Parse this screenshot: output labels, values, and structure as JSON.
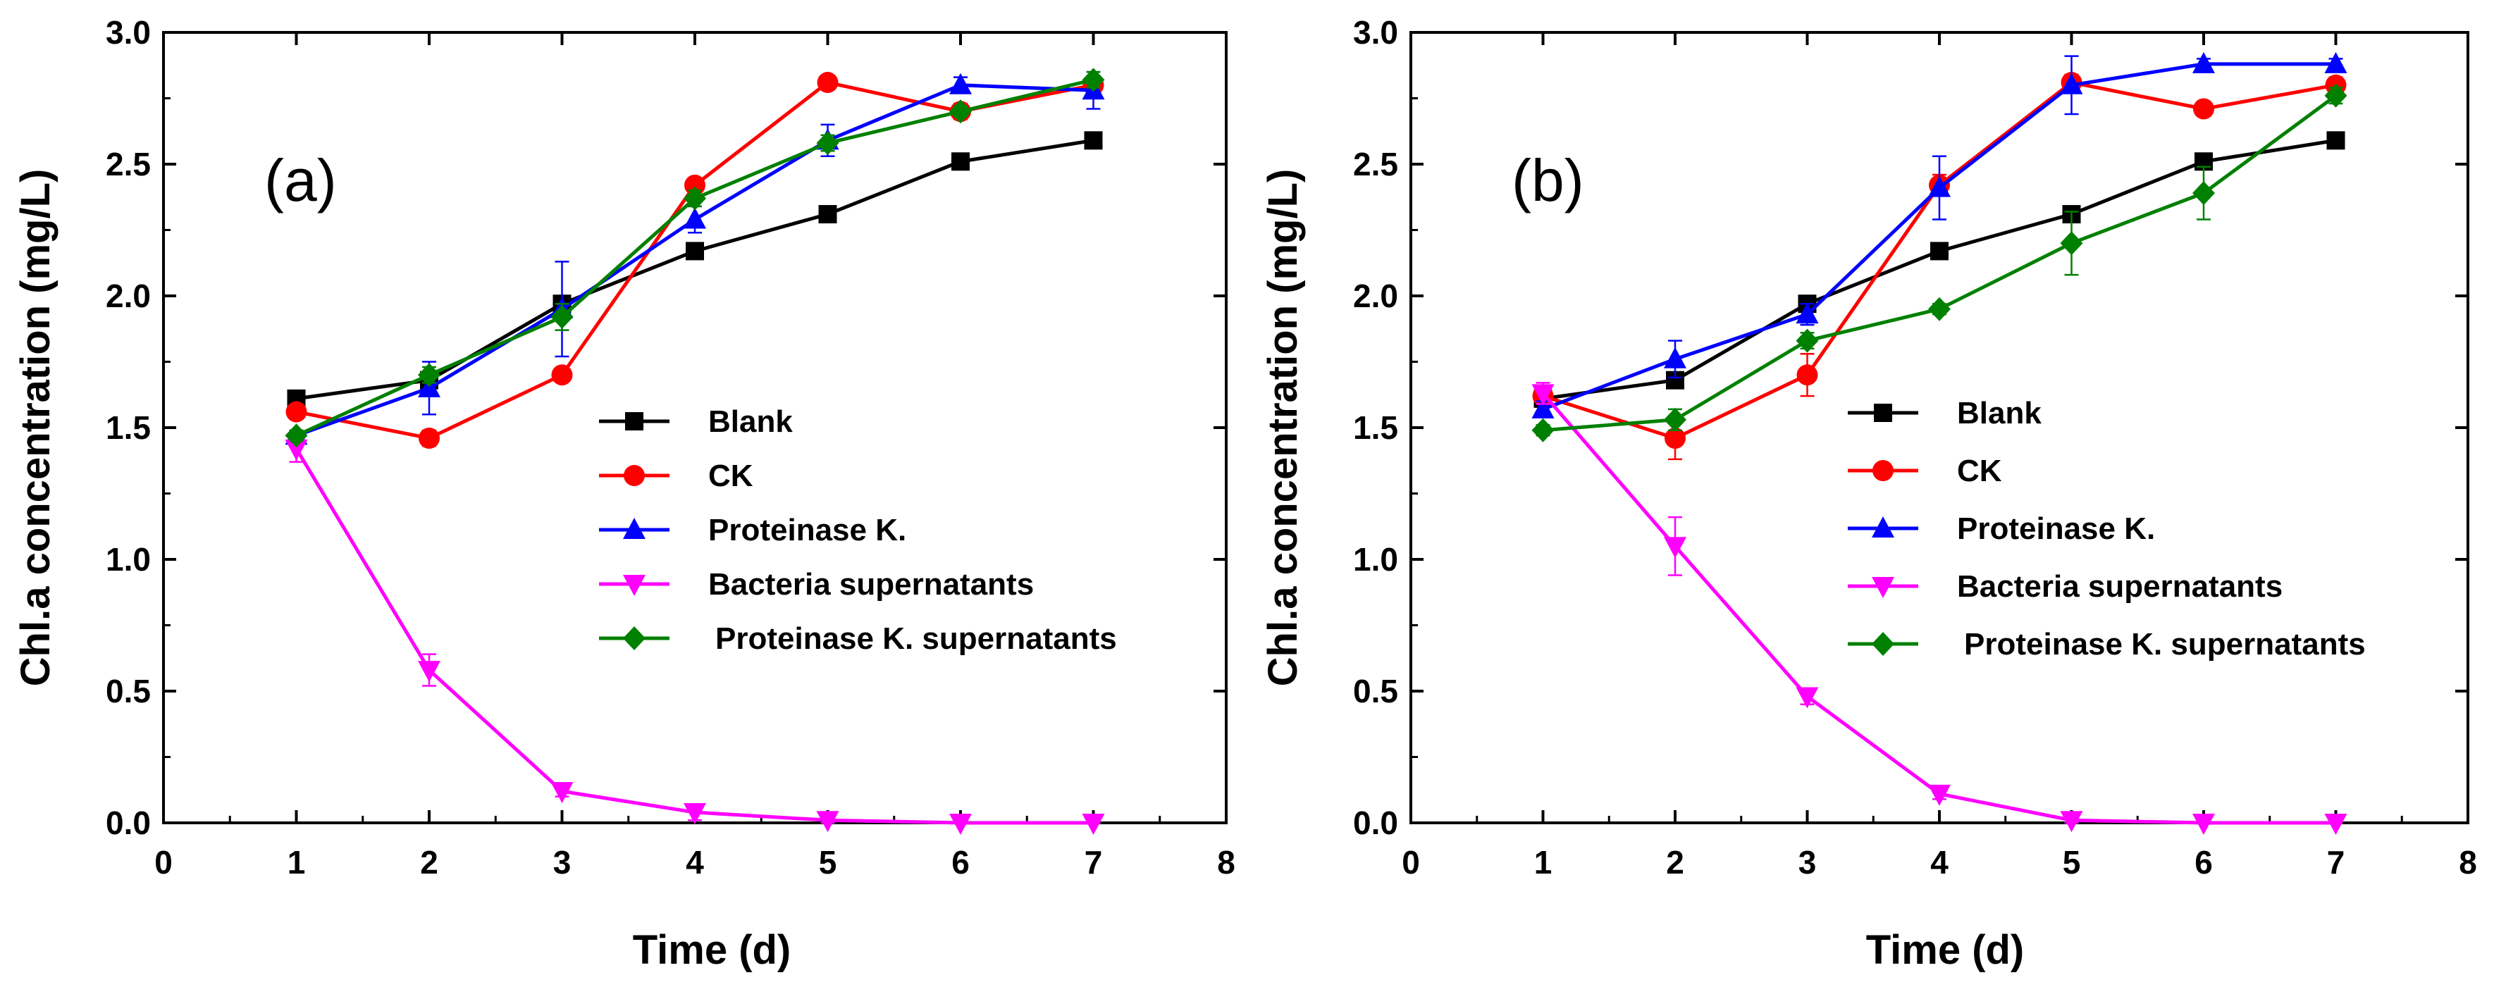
{
  "chart_data": [
    {
      "type": "line",
      "panel_label": "(a)",
      "xlabel": "Time (d)",
      "ylabel": "Chl.a concentration (mg/L)",
      "xlim": [
        0,
        8
      ],
      "ylim": [
        0,
        3.0
      ],
      "xticks": [
        "0",
        "1",
        "2",
        "3",
        "4",
        "5",
        "6",
        "7",
        "8"
      ],
      "yticks": [
        "0.0",
        "0.5",
        "1.0",
        "1.5",
        "2.0",
        "2.5",
        "3.0"
      ],
      "x": [
        1,
        2,
        3,
        4,
        5,
        6,
        7
      ],
      "legend_position": "center-right",
      "series": [
        {
          "name": "Blank",
          "color": "#000000",
          "marker": "square",
          "values": [
            1.61,
            1.68,
            1.97,
            2.17,
            2.31,
            2.51,
            2.59
          ],
          "errors": [
            0.02,
            0.02,
            0.03,
            0.02,
            0.03,
            0.02,
            0.03
          ]
        },
        {
          "name": "CK",
          "color": "#ff0000",
          "marker": "circle",
          "values": [
            1.56,
            1.46,
            1.7,
            2.42,
            2.81,
            2.7,
            2.8
          ],
          "errors": [
            0.02,
            0.03,
            0.02,
            0.02,
            0.02,
            0.03,
            0.03
          ]
        },
        {
          "name": "Proteinase K.",
          "color": "#0000ff",
          "marker": "triangle-up",
          "values": [
            1.47,
            1.65,
            1.95,
            2.29,
            2.59,
            2.8,
            2.78
          ],
          "errors": [
            0.02,
            0.1,
            0.18,
            0.05,
            0.06,
            0.03,
            0.07
          ]
        },
        {
          "name": "Bacteria supernatants",
          "color": "#ff00ff",
          "marker": "triangle-down",
          "values": [
            1.42,
            0.58,
            0.12,
            0.04,
            0.01,
            0.0,
            0.0
          ],
          "errors": [
            0.05,
            0.06,
            0.02,
            0.03,
            0.03,
            0.01,
            0.01
          ]
        },
        {
          "name": "Proteinase K. supernatants",
          "color": "#008000",
          "marker": "diamond",
          "values": [
            1.47,
            1.7,
            1.92,
            2.37,
            2.58,
            2.7,
            2.82
          ],
          "errors": [
            0.02,
            0.03,
            0.05,
            0.03,
            0.03,
            0.02,
            0.03
          ]
        }
      ]
    },
    {
      "type": "line",
      "panel_label": "(b)",
      "xlabel": "Time (d)",
      "ylabel": "Chl.a concentration (mg/L)",
      "xlim": [
        0,
        8
      ],
      "ylim": [
        0,
        3.0
      ],
      "xticks": [
        "0",
        "1",
        "2",
        "3",
        "4",
        "5",
        "6",
        "7",
        "8"
      ],
      "yticks": [
        "0.0",
        "0.5",
        "1.0",
        "1.5",
        "2.0",
        "2.5",
        "3.0"
      ],
      "x": [
        1,
        2,
        3,
        4,
        5,
        6,
        7
      ],
      "legend_position": "center-right",
      "series": [
        {
          "name": "Blank",
          "color": "#000000",
          "marker": "square",
          "values": [
            1.61,
            1.68,
            1.97,
            2.17,
            2.31,
            2.51,
            2.59
          ],
          "errors": [
            0.02,
            0.02,
            0.03,
            0.02,
            0.03,
            0.02,
            0.03
          ]
        },
        {
          "name": "CK",
          "color": "#ff0000",
          "marker": "circle",
          "values": [
            1.62,
            1.46,
            1.7,
            2.42,
            2.81,
            2.71,
            2.8
          ],
          "errors": [
            0.03,
            0.08,
            0.08,
            0.04,
            0.03,
            0.02,
            0.03
          ]
        },
        {
          "name": "Proteinase K.",
          "color": "#0000ff",
          "marker": "triangle-up",
          "values": [
            1.57,
            1.76,
            1.93,
            2.41,
            2.8,
            2.88,
            2.88
          ],
          "errors": [
            0.03,
            0.07,
            0.04,
            0.12,
            0.11,
            0.02,
            0.02
          ]
        },
        {
          "name": "Bacteria supernatants",
          "color": "#ff00ff",
          "marker": "triangle-down",
          "values": [
            1.63,
            1.05,
            0.48,
            0.11,
            0.01,
            0.0,
            0.0
          ],
          "errors": [
            0.04,
            0.11,
            0.03,
            0.02,
            0.02,
            0.01,
            0.01
          ]
        },
        {
          "name": "Proteinase K. supernatants",
          "color": "#008000",
          "marker": "diamond",
          "values": [
            1.49,
            1.53,
            1.83,
            1.95,
            2.2,
            2.39,
            2.76
          ],
          "errors": [
            0.02,
            0.04,
            0.03,
            0.02,
            0.12,
            0.1,
            0.03
          ]
        }
      ]
    }
  ]
}
